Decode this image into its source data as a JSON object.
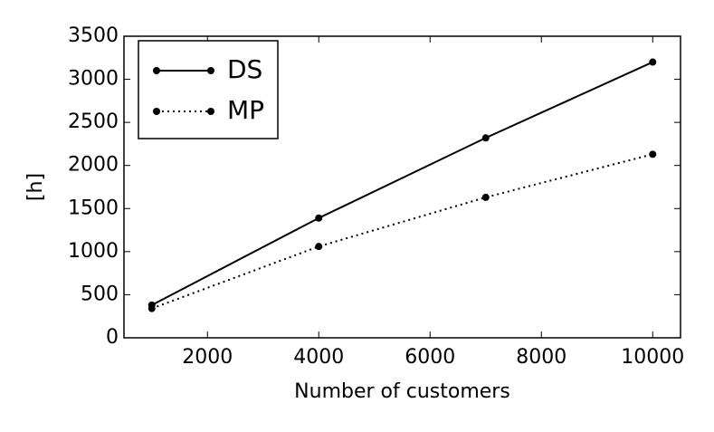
{
  "chart_data": {
    "type": "line",
    "xlabel": "Number of customers",
    "ylabel": "[h]",
    "x": [
      1000,
      4000,
      7000,
      10000
    ],
    "series": [
      {
        "name": "DS",
        "color": "#000000",
        "linestyle": "solid",
        "values": [
          380,
          1390,
          2320,
          3200
        ]
      },
      {
        "name": "MP",
        "color": "#000000",
        "linestyle": "dotted",
        "values": [
          340,
          1060,
          1630,
          2130
        ]
      }
    ],
    "xlim": [
      500,
      10500
    ],
    "xticks": [
      2000,
      4000,
      6000,
      8000,
      10000
    ],
    "ylim": [
      0,
      3500
    ],
    "yticks": [
      0,
      500,
      1000,
      1500,
      2000,
      2500,
      3000,
      3500
    ],
    "legend": "upper left"
  }
}
